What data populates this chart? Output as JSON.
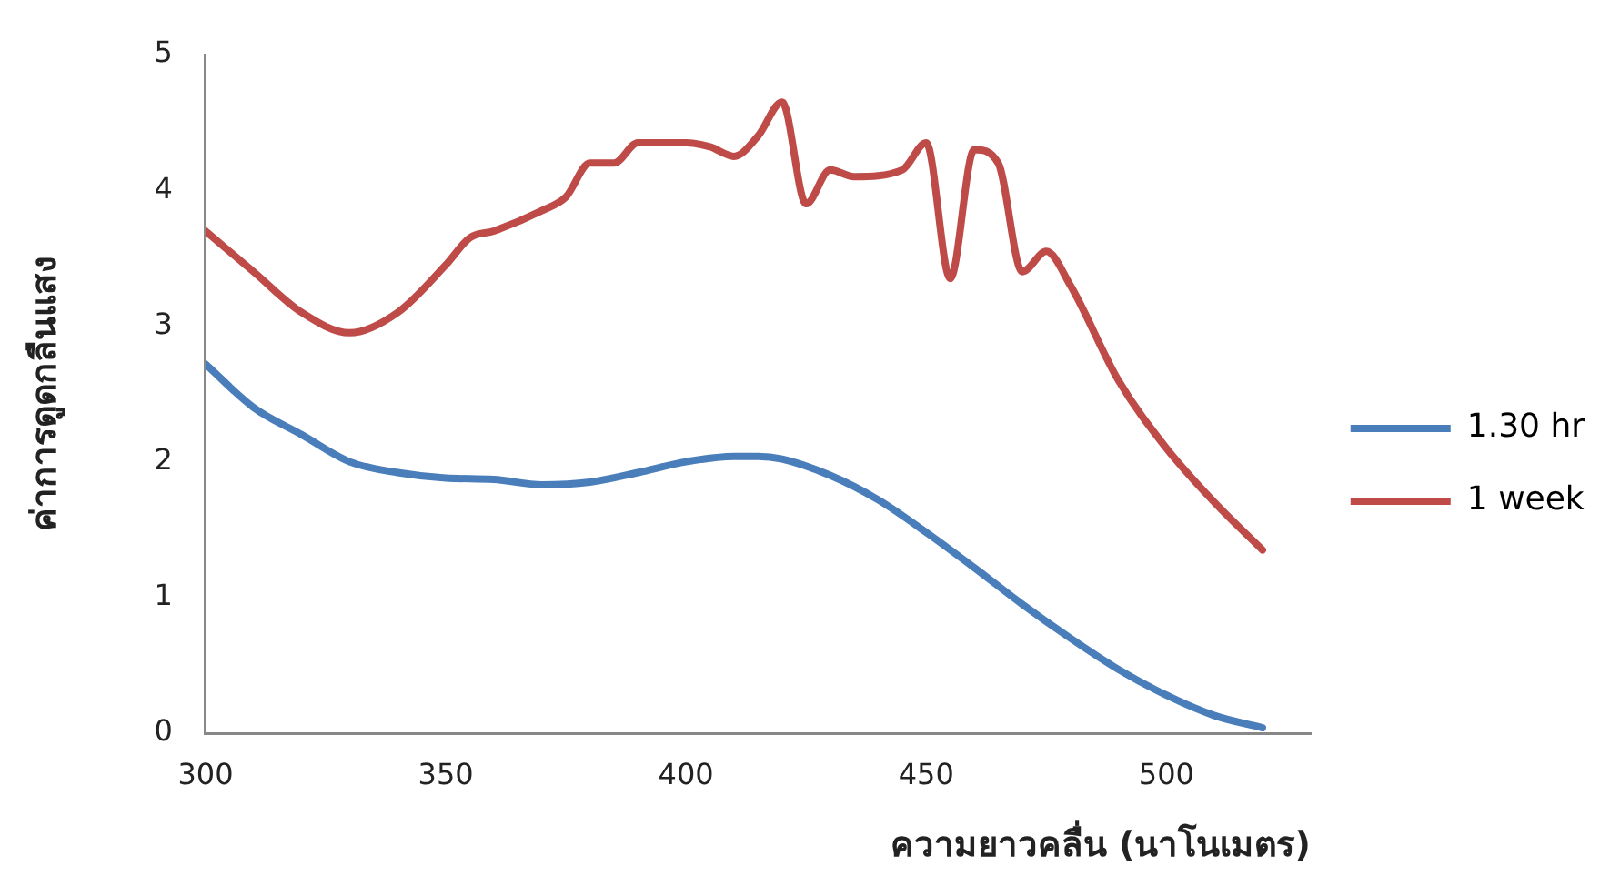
{
  "chart_data": {
    "type": "line",
    "xlabel": "ความยาวคลื่น (นาโนเมตร)",
    "ylabel": "ค่าการดูดกลืนแสง",
    "xlim": [
      300,
      530
    ],
    "xticks": [
      300,
      350,
      400,
      450,
      500
    ],
    "ylim": [
      0,
      5
    ],
    "yticks": [
      0,
      1,
      2,
      3,
      4,
      5
    ],
    "grid": false,
    "legend": "right",
    "marker": "none",
    "line_style": "solid",
    "series": [
      {
        "name": "1.30 hr",
        "color": "#4a7ebb",
        "x": [
          300,
          310,
          320,
          330,
          340,
          350,
          360,
          370,
          380,
          390,
          400,
          410,
          415,
          420,
          430,
          440,
          450,
          460,
          470,
          480,
          490,
          500,
          510,
          520
        ],
        "values": [
          2.72,
          2.4,
          2.2,
          2.0,
          1.92,
          1.88,
          1.87,
          1.83,
          1.85,
          1.92,
          2.0,
          2.04,
          2.04,
          2.02,
          1.9,
          1.72,
          1.48,
          1.22,
          0.95,
          0.7,
          0.47,
          0.28,
          0.13,
          0.04
        ]
      },
      {
        "name": "1 week",
        "color": "#be4b48",
        "x": [
          300,
          310,
          320,
          330,
          340,
          350,
          355,
          360,
          370,
          375,
          380,
          385,
          390,
          400,
          405,
          410,
          415,
          420,
          425,
          430,
          435,
          445,
          450,
          455,
          460,
          465,
          470,
          475,
          480,
          490,
          500,
          510,
          520
        ],
        "values": [
          3.7,
          3.4,
          3.1,
          2.95,
          3.1,
          3.45,
          3.65,
          3.7,
          3.85,
          3.95,
          4.2,
          4.2,
          4.35,
          4.35,
          4.32,
          4.25,
          4.4,
          4.65,
          3.9,
          4.15,
          4.1,
          4.15,
          4.35,
          3.35,
          4.3,
          4.2,
          3.4,
          3.55,
          3.3,
          2.6,
          2.1,
          1.7,
          1.35
        ]
      }
    ]
  }
}
